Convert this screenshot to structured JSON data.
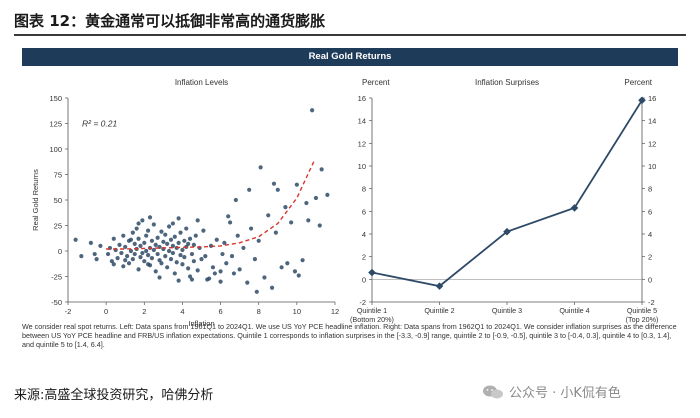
{
  "figure_title": "图表 12：黄金通常可以抵御非常高的通货膨胀",
  "banner_title": "Real Gold Returns",
  "chart_data": [
    {
      "type": "scatter",
      "title": "Inflation Levels",
      "xlabel": "Inflation",
      "ylabel": "Real Gold Returns",
      "xlim": [
        -2,
        12
      ],
      "ylim": [
        -50,
        150
      ],
      "xticks": [
        -2,
        0,
        2,
        4,
        6,
        8,
        10,
        12
      ],
      "yticks": [
        -50,
        -25,
        0,
        25,
        50,
        75,
        100,
        125,
        150
      ],
      "annotation": "R² = 0.21",
      "color": "#2e4a66",
      "trend_color": "#d9342b",
      "trend_curve": [
        [
          0,
          2
        ],
        [
          1,
          2
        ],
        [
          2,
          2.5
        ],
        [
          3,
          3
        ],
        [
          4,
          3.5
        ],
        [
          5,
          4
        ],
        [
          6,
          5
        ],
        [
          7,
          8
        ],
        [
          8,
          14
        ],
        [
          9,
          27
        ],
        [
          10,
          52
        ],
        [
          10.9,
          88
        ]
      ],
      "points": [
        [
          -1.6,
          11
        ],
        [
          -1.3,
          -5
        ],
        [
          -0.8,
          8
        ],
        [
          -0.5,
          -8
        ],
        [
          -0.3,
          5
        ],
        [
          0.1,
          -3
        ],
        [
          0.2,
          3
        ],
        [
          0.3,
          -10
        ],
        [
          0.4,
          12
        ],
        [
          0.5,
          1
        ],
        [
          0.6,
          -7
        ],
        [
          0.7,
          6
        ],
        [
          0.8,
          -2
        ],
        [
          0.9,
          15
        ],
        [
          0.9,
          -15
        ],
        [
          1.0,
          4
        ],
        [
          1.1,
          -5
        ],
        [
          1.2,
          10
        ],
        [
          1.2,
          -12
        ],
        [
          1.3,
          0
        ],
        [
          1.4,
          18
        ],
        [
          1.4,
          -8
        ],
        [
          1.5,
          7
        ],
        [
          1.5,
          -3
        ],
        [
          1.6,
          22
        ],
        [
          1.6,
          2
        ],
        [
          1.7,
          -18
        ],
        [
          1.7,
          12
        ],
        [
          1.8,
          -6
        ],
        [
          1.8,
          5
        ],
        [
          1.9,
          30
        ],
        [
          1.9,
          -2
        ],
        [
          2.0,
          8
        ],
        [
          2.0,
          -10
        ],
        [
          2.1,
          15
        ],
        [
          2.1,
          0
        ],
        [
          2.2,
          -4
        ],
        [
          2.2,
          20
        ],
        [
          2.3,
          3
        ],
        [
          2.3,
          -14
        ],
        [
          2.4,
          10
        ],
        [
          2.4,
          -7
        ],
        [
          2.5,
          26
        ],
        [
          2.5,
          1
        ],
        [
          2.6,
          -20
        ],
        [
          2.6,
          6
        ],
        [
          2.7,
          13
        ],
        [
          2.7,
          -3
        ],
        [
          2.8,
          -9
        ],
        [
          2.8,
          4
        ],
        [
          2.9,
          19
        ],
        [
          2.9,
          -12
        ],
        [
          3.0,
          2
        ],
        [
          3.0,
          9
        ],
        [
          3.1,
          -5
        ],
        [
          3.1,
          16
        ],
        [
          3.2,
          -16
        ],
        [
          3.2,
          7
        ],
        [
          3.3,
          0
        ],
        [
          3.3,
          24
        ],
        [
          3.4,
          -8
        ],
        [
          3.4,
          11
        ],
        [
          3.5,
          -2
        ],
        [
          3.5,
          5
        ],
        [
          3.6,
          -22
        ],
        [
          3.6,
          14
        ],
        [
          3.7,
          3
        ],
        [
          3.7,
          -11
        ],
        [
          3.8,
          8
        ],
        [
          3.8,
          32
        ],
        [
          3.9,
          -4
        ],
        [
          3.9,
          18
        ],
        [
          4.0,
          1
        ],
        [
          4.0,
          -13
        ],
        [
          4.1,
          10
        ],
        [
          4.1,
          -6
        ],
        [
          4.2,
          22
        ],
        [
          4.2,
          4
        ],
        [
          4.3,
          -17
        ],
        [
          4.3,
          7
        ],
        [
          4.4,
          -25
        ],
        [
          4.4,
          12
        ],
        [
          4.5,
          -3
        ],
        [
          4.6,
          6
        ],
        [
          4.6,
          -10
        ],
        [
          4.7,
          15
        ],
        [
          4.8,
          -19
        ],
        [
          4.9,
          3
        ],
        [
          5.0,
          -8
        ],
        [
          5.1,
          20
        ],
        [
          5.3,
          -28
        ],
        [
          5.5,
          5
        ],
        [
          5.6,
          -16
        ],
        [
          5.8,
          11
        ],
        [
          6.0,
          -30
        ],
        [
          6.0,
          -20
        ],
        [
          6.2,
          8
        ],
        [
          6.3,
          -12
        ],
        [
          6.5,
          28
        ],
        [
          6.6,
          -5
        ],
        [
          6.7,
          -22
        ],
        [
          6.9,
          15
        ],
        [
          7.0,
          -18
        ],
        [
          7.2,
          3
        ],
        [
          7.4,
          -31
        ],
        [
          7.6,
          22
        ],
        [
          7.8,
          -8
        ],
        [
          8.0,
          10
        ],
        [
          8.3,
          -26
        ],
        [
          8.5,
          35
        ],
        [
          8.7,
          -36
        ],
        [
          8.9,
          18
        ],
        [
          9.2,
          -16
        ],
        [
          9.4,
          43
        ],
        [
          9.5,
          -12
        ],
        [
          9.7,
          28
        ],
        [
          9.9,
          -20
        ],
        [
          10.0,
          65
        ],
        [
          10.1,
          -24
        ],
        [
          10.3,
          -9
        ],
        [
          10.5,
          47
        ],
        [
          10.6,
          30
        ],
        [
          10.8,
          138
        ],
        [
          11.0,
          52
        ],
        [
          11.2,
          25
        ],
        [
          11.3,
          80
        ],
        [
          11.6,
          55
        ],
        [
          7.9,
          -40
        ],
        [
          8.1,
          82
        ],
        [
          8.8,
          66
        ],
        [
          5.4,
          -27
        ],
        [
          4.8,
          30
        ],
        [
          6.8,
          50
        ],
        [
          7.5,
          60
        ],
        [
          6.4,
          34
        ],
        [
          9.0,
          60
        ],
        [
          3.8,
          -29
        ],
        [
          2.8,
          -26
        ],
        [
          1.7,
          27
        ],
        [
          2.3,
          33
        ],
        [
          0.4,
          -13
        ],
        [
          -0.6,
          -3
        ],
        [
          1.0,
          -9
        ],
        [
          3.5,
          27
        ],
        [
          4.5,
          -28
        ],
        [
          5.2,
          -5
        ],
        [
          6.1,
          -3
        ],
        [
          5.7,
          -22
        ],
        [
          2.2,
          -13
        ],
        [
          1.3,
          11
        ]
      ]
    },
    {
      "type": "line",
      "title": "Inflation Surprises",
      "ylabel_left": "Percent",
      "ylabel_right": "Percent",
      "categories": [
        "Quintile 1 (Bottom 20%)",
        "Quintile 2",
        "Quintile 3",
        "Quintile 4",
        "Quintile 5 (Top 20%)"
      ],
      "category_lines": [
        [
          "Quintile 1",
          "(Bottom 20%)"
        ],
        [
          "Quintile 2"
        ],
        [
          "Quintile 3"
        ],
        [
          "Quintile 4"
        ],
        [
          "Quintile 5",
          "(Top 20%)"
        ]
      ],
      "values": [
        0.6,
        -0.6,
        4.2,
        6.3,
        15.8
      ],
      "ylim": [
        -2,
        16
      ],
      "yticks": [
        -2,
        0,
        2,
        4,
        6,
        8,
        10,
        12,
        14,
        16
      ],
      "color": "#2e4a66"
    }
  ],
  "footnote": "We consider real spot returns. Left: Data spans from 1961Q1 to 2024Q1. We use US YoY PCE headline inflation. Right: Data spans from 1962Q1 to 2024Q1. We consider inflation surprises as the difference between US YoY PCE headline and FRB/US inflation expectations. Quintile 1 corresponds to inflation surprises in the [-3.3, -0.9] range, quintile 2 to [-0.9, -0.5], quintile 3 to [-0.4, 0.3], quintile 4 to [0.3, 1.4], and quintile 5 to [1.4, 6.4].",
  "source": "来源:高盛全球投资研究，哈佛分析",
  "watermark": "公众号 · 小K侃有色",
  "watermark_icon": "wechat-icon"
}
